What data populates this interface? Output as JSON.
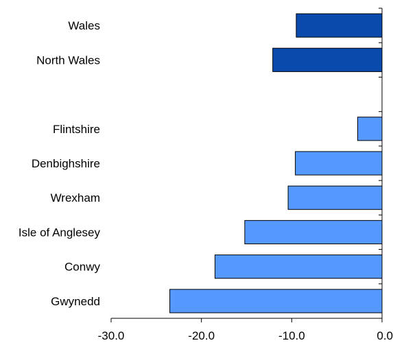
{
  "chart_data": {
    "type": "bar",
    "orientation": "horizontal",
    "categories": [
      "Wales",
      "North Wales",
      "",
      "Flintshire",
      "Denbighshire",
      "Wrexham",
      "Isle of Anglesey",
      "Conwy",
      "Gwynedd"
    ],
    "values": [
      -9.5,
      -12.1,
      null,
      -2.7,
      -9.6,
      -10.4,
      -15.2,
      -18.5,
      -23.5
    ],
    "bar_colors": [
      "#0a4aad",
      "#0a4aad",
      null,
      "#5599ff",
      "#5599ff",
      "#5599ff",
      "#5599ff",
      "#5599ff",
      "#5599ff"
    ],
    "xlim": [
      -30,
      0
    ],
    "xticks": [
      "-30.0",
      "-20.0",
      "-10.0",
      "0.0"
    ],
    "title": "",
    "xlabel": "",
    "ylabel": "",
    "grid": false,
    "legend": "none"
  }
}
